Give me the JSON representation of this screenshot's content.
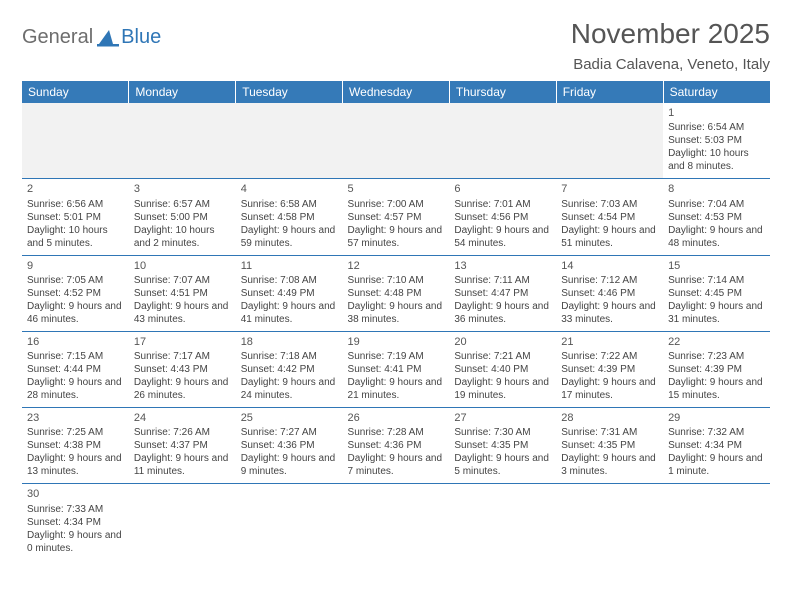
{
  "logo": {
    "general": "General",
    "blue": "Blue"
  },
  "header": {
    "title": "November 2025",
    "subtitle": "Badia Calavena, Veneto, Italy"
  },
  "colors": {
    "header_bg": "#357ab8",
    "header_text": "#ffffff",
    "border": "#2f76b6",
    "empty_bg": "#f2f2f2",
    "body_text": "#444444",
    "title_text": "#555555"
  },
  "columns": [
    "Sunday",
    "Monday",
    "Tuesday",
    "Wednesday",
    "Thursday",
    "Friday",
    "Saturday"
  ],
  "weeks": [
    [
      null,
      null,
      null,
      null,
      null,
      null,
      {
        "n": "1",
        "sr": "Sunrise: 6:54 AM",
        "ss": "Sunset: 5:03 PM",
        "dl": "Daylight: 10 hours and 8 minutes."
      }
    ],
    [
      {
        "n": "2",
        "sr": "Sunrise: 6:56 AM",
        "ss": "Sunset: 5:01 PM",
        "dl": "Daylight: 10 hours and 5 minutes."
      },
      {
        "n": "3",
        "sr": "Sunrise: 6:57 AM",
        "ss": "Sunset: 5:00 PM",
        "dl": "Daylight: 10 hours and 2 minutes."
      },
      {
        "n": "4",
        "sr": "Sunrise: 6:58 AM",
        "ss": "Sunset: 4:58 PM",
        "dl": "Daylight: 9 hours and 59 minutes."
      },
      {
        "n": "5",
        "sr": "Sunrise: 7:00 AM",
        "ss": "Sunset: 4:57 PM",
        "dl": "Daylight: 9 hours and 57 minutes."
      },
      {
        "n": "6",
        "sr": "Sunrise: 7:01 AM",
        "ss": "Sunset: 4:56 PM",
        "dl": "Daylight: 9 hours and 54 minutes."
      },
      {
        "n": "7",
        "sr": "Sunrise: 7:03 AM",
        "ss": "Sunset: 4:54 PM",
        "dl": "Daylight: 9 hours and 51 minutes."
      },
      {
        "n": "8",
        "sr": "Sunrise: 7:04 AM",
        "ss": "Sunset: 4:53 PM",
        "dl": "Daylight: 9 hours and 48 minutes."
      }
    ],
    [
      {
        "n": "9",
        "sr": "Sunrise: 7:05 AM",
        "ss": "Sunset: 4:52 PM",
        "dl": "Daylight: 9 hours and 46 minutes."
      },
      {
        "n": "10",
        "sr": "Sunrise: 7:07 AM",
        "ss": "Sunset: 4:51 PM",
        "dl": "Daylight: 9 hours and 43 minutes."
      },
      {
        "n": "11",
        "sr": "Sunrise: 7:08 AM",
        "ss": "Sunset: 4:49 PM",
        "dl": "Daylight: 9 hours and 41 minutes."
      },
      {
        "n": "12",
        "sr": "Sunrise: 7:10 AM",
        "ss": "Sunset: 4:48 PM",
        "dl": "Daylight: 9 hours and 38 minutes."
      },
      {
        "n": "13",
        "sr": "Sunrise: 7:11 AM",
        "ss": "Sunset: 4:47 PM",
        "dl": "Daylight: 9 hours and 36 minutes."
      },
      {
        "n": "14",
        "sr": "Sunrise: 7:12 AM",
        "ss": "Sunset: 4:46 PM",
        "dl": "Daylight: 9 hours and 33 minutes."
      },
      {
        "n": "15",
        "sr": "Sunrise: 7:14 AM",
        "ss": "Sunset: 4:45 PM",
        "dl": "Daylight: 9 hours and 31 minutes."
      }
    ],
    [
      {
        "n": "16",
        "sr": "Sunrise: 7:15 AM",
        "ss": "Sunset: 4:44 PM",
        "dl": "Daylight: 9 hours and 28 minutes."
      },
      {
        "n": "17",
        "sr": "Sunrise: 7:17 AM",
        "ss": "Sunset: 4:43 PM",
        "dl": "Daylight: 9 hours and 26 minutes."
      },
      {
        "n": "18",
        "sr": "Sunrise: 7:18 AM",
        "ss": "Sunset: 4:42 PM",
        "dl": "Daylight: 9 hours and 24 minutes."
      },
      {
        "n": "19",
        "sr": "Sunrise: 7:19 AM",
        "ss": "Sunset: 4:41 PM",
        "dl": "Daylight: 9 hours and 21 minutes."
      },
      {
        "n": "20",
        "sr": "Sunrise: 7:21 AM",
        "ss": "Sunset: 4:40 PM",
        "dl": "Daylight: 9 hours and 19 minutes."
      },
      {
        "n": "21",
        "sr": "Sunrise: 7:22 AM",
        "ss": "Sunset: 4:39 PM",
        "dl": "Daylight: 9 hours and 17 minutes."
      },
      {
        "n": "22",
        "sr": "Sunrise: 7:23 AM",
        "ss": "Sunset: 4:39 PM",
        "dl": "Daylight: 9 hours and 15 minutes."
      }
    ],
    [
      {
        "n": "23",
        "sr": "Sunrise: 7:25 AM",
        "ss": "Sunset: 4:38 PM",
        "dl": "Daylight: 9 hours and 13 minutes."
      },
      {
        "n": "24",
        "sr": "Sunrise: 7:26 AM",
        "ss": "Sunset: 4:37 PM",
        "dl": "Daylight: 9 hours and 11 minutes."
      },
      {
        "n": "25",
        "sr": "Sunrise: 7:27 AM",
        "ss": "Sunset: 4:36 PM",
        "dl": "Daylight: 9 hours and 9 minutes."
      },
      {
        "n": "26",
        "sr": "Sunrise: 7:28 AM",
        "ss": "Sunset: 4:36 PM",
        "dl": "Daylight: 9 hours and 7 minutes."
      },
      {
        "n": "27",
        "sr": "Sunrise: 7:30 AM",
        "ss": "Sunset: 4:35 PM",
        "dl": "Daylight: 9 hours and 5 minutes."
      },
      {
        "n": "28",
        "sr": "Sunrise: 7:31 AM",
        "ss": "Sunset: 4:35 PM",
        "dl": "Daylight: 9 hours and 3 minutes."
      },
      {
        "n": "29",
        "sr": "Sunrise: 7:32 AM",
        "ss": "Sunset: 4:34 PM",
        "dl": "Daylight: 9 hours and 1 minute."
      }
    ],
    [
      {
        "n": "30",
        "sr": "Sunrise: 7:33 AM",
        "ss": "Sunset: 4:34 PM",
        "dl": "Daylight: 9 hours and 0 minutes."
      },
      null,
      null,
      null,
      null,
      null,
      null
    ]
  ]
}
